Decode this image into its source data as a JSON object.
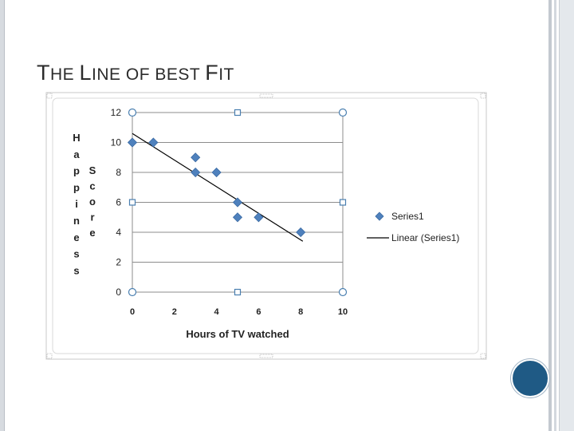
{
  "slide": {
    "title_part1_cap": "T",
    "title_part1_rest": "HE ",
    "title_part2_cap": "L",
    "title_part2_rest": "INE OF BEST ",
    "title_part3_cap": "F",
    "title_part3_rest": "IT"
  },
  "colors": {
    "marker": "#4f81bd",
    "trendline": "#000000",
    "gridline": "#8c8c8c",
    "accent_circle": "#1f5a85"
  },
  "chart_data": {
    "type": "scatter",
    "title": "",
    "xlabel": "Hours of TV watched",
    "ylabel_left": "Happiness",
    "ylabel_right": "Score",
    "xlim": [
      0,
      10
    ],
    "ylim": [
      0,
      12
    ],
    "x_ticks": [
      "0",
      "2",
      "4",
      "6",
      "8",
      "10"
    ],
    "y_ticks": [
      "0",
      "2",
      "4",
      "6",
      "8",
      "10",
      "12"
    ],
    "grid": "horizontal",
    "legend_position": "right",
    "series": [
      {
        "name": "Series1",
        "x": [
          0,
          1,
          3,
          3,
          4,
          5,
          5,
          6,
          8
        ],
        "y": [
          10,
          10,
          9,
          8,
          8,
          6,
          5,
          5,
          4
        ]
      }
    ],
    "trendline": {
      "name": "Linear (Series1)",
      "x": [
        0,
        8.1
      ],
      "y": [
        10.6,
        3.4
      ]
    }
  }
}
